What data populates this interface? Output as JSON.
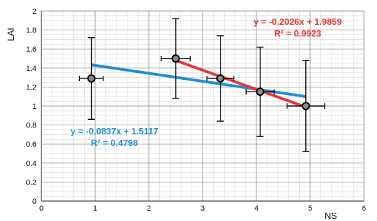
{
  "chart_data": {
    "type": "scatter",
    "title": "",
    "xlabel": "NS",
    "ylabel": "LAI",
    "xlim": [
      0,
      6
    ],
    "ylim": [
      0,
      2
    ],
    "grid": true,
    "x_ticks": [
      "0",
      "1",
      "2",
      "3",
      "4",
      "5",
      "6"
    ],
    "y_ticks": [
      "0",
      "0.2",
      "0.4",
      "0.6",
      "0.8",
      "1",
      "1.2",
      "1.4",
      "1.6",
      "1.8",
      "2"
    ],
    "points": [
      {
        "x": 0.93,
        "y": 1.29,
        "x_err": 0.22,
        "y_err": 0.43
      },
      {
        "x": 2.5,
        "y": 1.5,
        "x_err": 0.27,
        "y_err": 0.42
      },
      {
        "x": 3.33,
        "y": 1.29,
        "x_err": 0.25,
        "y_err": 0.45
      },
      {
        "x": 4.07,
        "y": 1.15,
        "x_err": 0.26,
        "y_err": 0.47
      },
      {
        "x": 4.92,
        "y": 1.0,
        "x_err": 0.35,
        "y_err": 0.48
      }
    ],
    "series": [
      {
        "equation": "y = -0.0837x + 1.5117",
        "r2": "R² = 0.4798",
        "slope": -0.0837,
        "intercept": 1.5117,
        "x_range": [
          0.93,
          4.92
        ],
        "color": "#1f8fd1"
      },
      {
        "equation": "y = -0.2026x + 1.9859",
        "r2": "R² = 0.9923",
        "slope": -0.2026,
        "intercept": 1.9859,
        "x_range": [
          2.5,
          4.92
        ],
        "color": "#e8373b"
      }
    ]
  }
}
